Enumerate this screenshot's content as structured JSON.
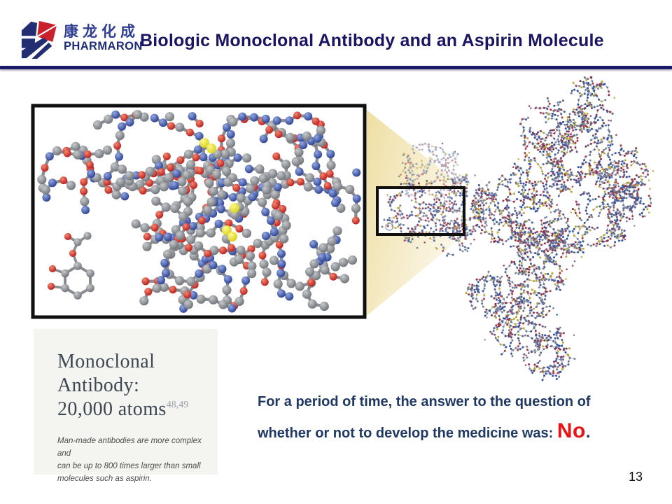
{
  "logo": {
    "chinese_name": "康龙化成",
    "latin_name": "PHARMARON"
  },
  "header": {
    "title": "Biologic Monoclonal Antibody and an Aspirin Molecule"
  },
  "info_box": {
    "heading_lines": [
      "Monoclonal",
      "Antibody:",
      "20,000 atoms"
    ],
    "heading_superscript": "48,49",
    "body_lines": [
      "Man-made antibodies are more complex and",
      "can be up to 800 times larger than small",
      "molecules such as aspirin."
    ]
  },
  "statement": {
    "line1": "For a period of time, the answer to the question of",
    "line2_prefix": "whether or not to develop the medicine was: ",
    "answer": "No",
    "suffix": "."
  },
  "page_number": "13",
  "colors": {
    "title_navy": "#1a1464",
    "statement_navy": "#1f3864",
    "answer_red": "#ec1212",
    "rule_navy": "#1a196b",
    "logo_navy": "#232d72",
    "logo_red": "#c9202c"
  },
  "figure": {
    "wedge_color_start": "#efdfa4",
    "wedge_color_end": "#fbf7ea",
    "atom_colors": {
      "carbon": "#6e7176",
      "oxygen": "#b71c1c",
      "nitrogen": "#2a3f8f",
      "sulfur": "#d8d01a"
    },
    "antibody_palette": [
      "#5b6488",
      "#a93a49",
      "#31519c",
      "#6f7a99",
      "#8d2f3f",
      "#3d5aa8",
      "#7d8298",
      "#b6a832"
    ]
  }
}
